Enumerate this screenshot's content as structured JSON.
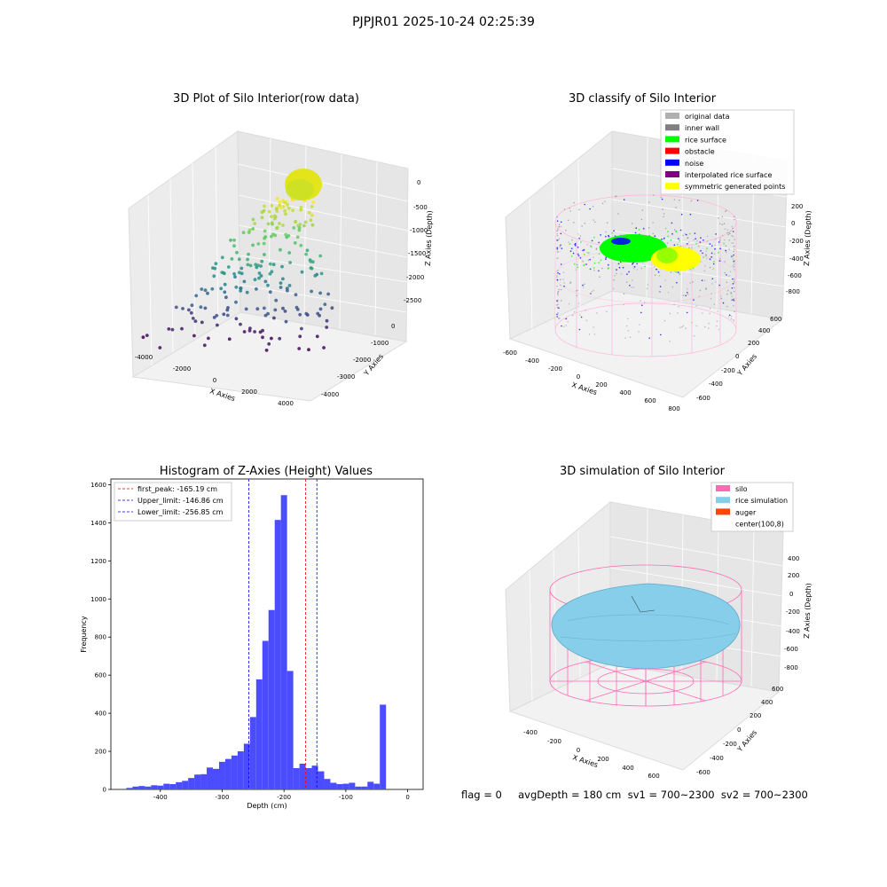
{
  "suptitle": "PJPJR01 2025-10-24 02:25:39",
  "chart_data": [
    {
      "type": "scatter",
      "title": "3D Plot of Silo Interior(row data)",
      "xlabel": "X Axies",
      "ylabel": "Y Axies",
      "zlabel": "Z Axies (Depth)",
      "x_ticks": [
        "-4000",
        "-2000",
        "0",
        "2000",
        "4000"
      ],
      "y_ticks": [
        "-4000",
        "-3000",
        "-2000",
        "-1000",
        "0"
      ],
      "z_ticks": [
        "0",
        "-500",
        "-1000",
        "-1500",
        "-2000",
        "-2500"
      ],
      "colormap": "viridis"
    },
    {
      "type": "scatter",
      "title": "3D classify of Silo Interior",
      "xlabel": "X Axies",
      "ylabel": "Y Axies",
      "zlabel": "Z Axies (Depth)",
      "x_ticks": [
        "-600",
        "-400",
        "-200",
        "0",
        "200",
        "400",
        "600",
        "800"
      ],
      "y_ticks": [
        "-600",
        "-400",
        "-200",
        "0",
        "200",
        "400",
        "600"
      ],
      "z_ticks": [
        "200",
        "0",
        "-200",
        "-400",
        "-600",
        "-800"
      ],
      "legend": [
        {
          "label": "original data",
          "color": "#b0b0b0"
        },
        {
          "label": "inner wall",
          "color": "#808080"
        },
        {
          "label": "rice surface",
          "color": "#00ff00"
        },
        {
          "label": "obstacle",
          "color": "#ff0000"
        },
        {
          "label": "noise",
          "color": "#0000ff"
        },
        {
          "label": "interpolated rice surface",
          "color": "#800080"
        },
        {
          "label": "symmetric generated points",
          "color": "#ffff00"
        }
      ]
    },
    {
      "type": "bar",
      "title": "Histogram of Z-Axies (Height) Values",
      "xlabel": "Depth (cm)",
      "ylabel": "Frequency",
      "xlim": [
        -480,
        25
      ],
      "ylim": [
        0,
        1630
      ],
      "x_ticks": [
        -400,
        -300,
        -200,
        -100,
        0
      ],
      "y_ticks": [
        0,
        200,
        400,
        600,
        800,
        1000,
        1200,
        1400,
        1600
      ],
      "bin_start": -465,
      "bin_width": 10,
      "values": [
        3,
        8,
        15,
        18,
        15,
        22,
        20,
        30,
        28,
        38,
        45,
        60,
        78,
        80,
        115,
        108,
        145,
        160,
        178,
        200,
        240,
        380,
        578,
        780,
        942,
        1415,
        1545,
        622,
        112,
        135,
        112,
        125,
        95,
        55,
        35,
        28,
        30,
        35,
        15,
        15,
        40,
        30,
        445
      ],
      "bar_color": "#4c4cff",
      "lines": [
        {
          "label": "first_peak: -165.19 cm",
          "x": -165.19,
          "color": "#ff0000"
        },
        {
          "label": "Upper_limit: -146.86 cm",
          "x": -146.86,
          "color": "#0000ff"
        },
        {
          "label": "Lower_limit: -256.85 cm",
          "x": -256.85,
          "color": "#0000ff"
        }
      ]
    },
    {
      "type": "area",
      "title": "3D simulation of Silo Interior",
      "xlabel": "X Axies",
      "ylabel": "Y Axies",
      "zlabel": "Z Axies (Depth)",
      "x_ticks": [
        "-400",
        "-200",
        "0",
        "200",
        "400",
        "600"
      ],
      "y_ticks": [
        "-600",
        "-400",
        "-200",
        "0",
        "200",
        "400",
        "600"
      ],
      "z_ticks": [
        "400",
        "200",
        "0",
        "-200",
        "-400",
        "-600",
        "-800"
      ],
      "legend": [
        {
          "label": "silo",
          "color": "#ff69b4"
        },
        {
          "label": "rice simulation",
          "color": "#87ceeb"
        },
        {
          "label": "auger",
          "color": "#ff4500"
        },
        {
          "label": "center(100,8)",
          "color": ""
        }
      ]
    }
  ],
  "footer": "flag = 0     avgDepth = 180 cm  sv1 = 700~2300  sv2 = 700~2300"
}
